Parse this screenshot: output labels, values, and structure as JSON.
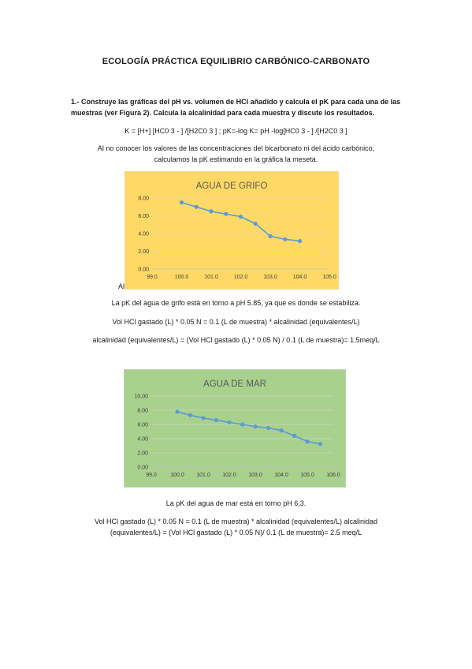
{
  "document": {
    "title": "ECOLOGÍA PRÁCTICA EQUILIBRIO CARBÓNICO-CARBONATO",
    "question_number": "1.-",
    "question_text": "Construye las gráficas del pH vs. volumen de HCl añadido y calcula el pK para cada una de las muestras (ver Figura 2). Calcula la alcalinidad para cada muestra y discute los resultados.",
    "formula": "K =  [H+] [HC0 3 - ] /[H2C0 3 ] ; pK=-log K= pH -log[HC0 3 - ] /[H2C0 3 ]",
    "intro_line1": "Al no conocer los valores de las concentraciones del bicarbonato ni del ácido carbónico,",
    "intro_line2": "calculamos la pK estimando en la gráfica la meseta.",
    "stray_text": "Al",
    "grifo_pk": "La pK del agua de grifo está en torno a pH 5.85, ya que es donde se estabiliza.",
    "grifo_eq1": "Vol HCl gastado (L) * 0.05 N = 0.1 (L de muestra) * alcalinidad (equivalentes/L)",
    "grifo_eq2": "alcalinidad (equivalentes/L) = (Vol HCl gastado (L) * 0.05 N) / 0.1 (L de muestra)= 1.5meq/L",
    "mar_pk": "La pK del agua de mar está en torno pH 6,3.",
    "mar_eq1": "Vol HCl gastado (L) * 0.05 N = 0.1 (L de muestra) * alcalinidad (equivalentes/L) alcalinidad",
    "mar_eq2": "(equivalentes/L) = (Vol HCl gastado (L) * 0.05 N)/ 0.1 (L de muestra)= 2.5 meq/L"
  },
  "chart_data": [
    {
      "type": "line",
      "title": "AGUA DE GRIFO",
      "background": "#ffd966",
      "line_color": "#5b9bd5",
      "xlim": [
        99.0,
        105.0
      ],
      "ylim": [
        0.0,
        8.0
      ],
      "x_ticks": [
        "99.0",
        "100.0",
        "101.0",
        "102.0",
        "103.0",
        "104.0",
        "105.0"
      ],
      "y_ticks": [
        "0.00",
        "2.00",
        "4.00",
        "6.00",
        "8.00"
      ],
      "x": [
        100.0,
        100.5,
        101.0,
        101.5,
        102.0,
        102.5,
        103.0,
        103.5,
        104.0
      ],
      "y": [
        7.5,
        7.0,
        6.5,
        6.2,
        5.9,
        5.1,
        3.7,
        3.35,
        3.15
      ]
    },
    {
      "type": "line",
      "title": "AGUA DE MAR",
      "background": "#a9d18e",
      "line_color": "#5b9bd5",
      "xlim": [
        99.0,
        106.0
      ],
      "ylim": [
        0.0,
        10.0
      ],
      "x_ticks": [
        "99.0",
        "100.0",
        "101.0",
        "102.0",
        "103.0",
        "104.0",
        "105.0",
        "106.0"
      ],
      "y_ticks": [
        "0.00",
        "2.00",
        "4.00",
        "6.00",
        "8.00",
        "10.00"
      ],
      "x": [
        100.0,
        100.5,
        101.0,
        101.5,
        102.0,
        102.5,
        103.0,
        103.5,
        104.0,
        104.5,
        105.0,
        105.5
      ],
      "y": [
        7.8,
        7.3,
        6.9,
        6.6,
        6.3,
        6.0,
        5.7,
        5.5,
        5.15,
        4.4,
        3.6,
        3.25
      ]
    }
  ]
}
